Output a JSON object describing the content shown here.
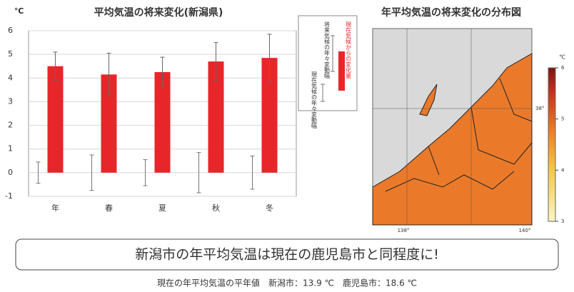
{
  "chart_data": {
    "type": "bar",
    "title": "平均気温の将来変化(新潟県)",
    "y_unit": "℃",
    "categories": [
      "年",
      "春",
      "夏",
      "秋",
      "冬"
    ],
    "series": [
      {
        "name": "現在気候からの変化量",
        "color": "#e8262a",
        "values": [
          4.5,
          4.15,
          4.25,
          4.7,
          4.85
        ],
        "errors": [
          0.6,
          0.9,
          0.63,
          0.8,
          1.0
        ],
        "error_name": "将来気候の年々変動幅"
      },
      {
        "name": "現在気候の年々変動幅",
        "color": "#777777",
        "values": [
          0,
          0,
          0,
          0,
          0
        ],
        "errors": [
          0.45,
          0.75,
          0.55,
          0.85,
          0.7
        ]
      }
    ],
    "ylim": [
      -1,
      6
    ],
    "yticks": [
      -1,
      0,
      1,
      2,
      3,
      4,
      5,
      6
    ],
    "grid": true
  },
  "map": {
    "title": "年平均気温の将来変化の分布図",
    "colorbar_unit": "℃",
    "colorbar_lim": [
      3,
      6
    ],
    "colorbar_ticks": [
      3,
      4,
      5,
      6
    ],
    "lat_label": "38°",
    "lon_labels": [
      "138°",
      "140°"
    ]
  },
  "banner": "新潟市の年平均気温は現在の鹿児島市と同程度に!",
  "footnote": "現在の年平均気温の平年値　新潟市：13.9 ℃　鹿児島市：18.6 ℃"
}
